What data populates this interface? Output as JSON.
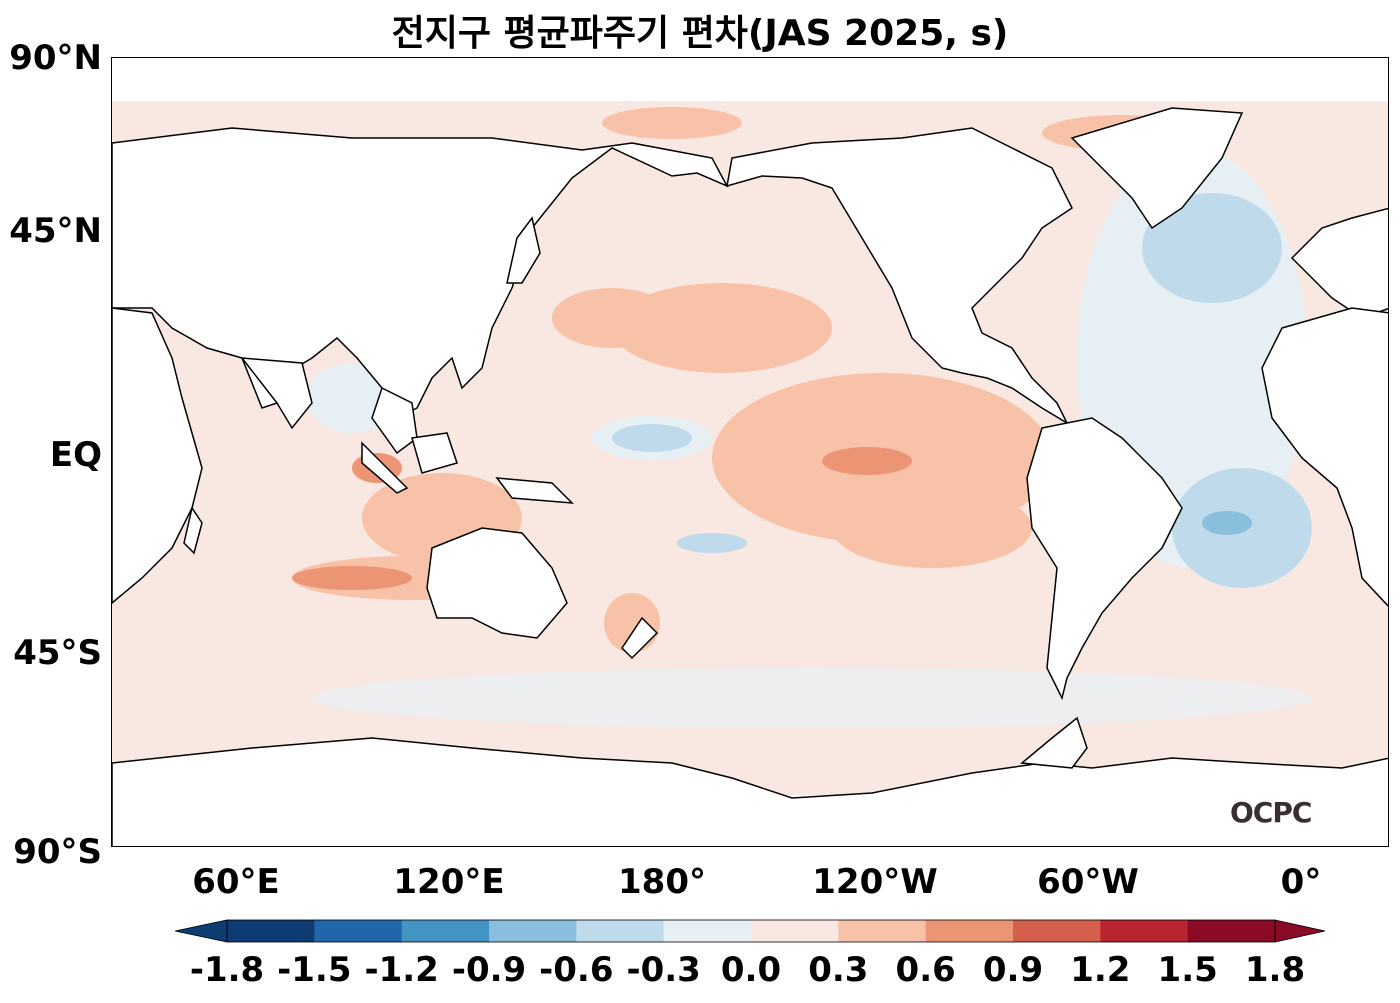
{
  "title": "전지구 평균파주기 편차(JAS 2025, s)",
  "y_axis": {
    "ticks": [
      "90°N",
      "45°N",
      "EQ",
      "45°S",
      "90°S"
    ]
  },
  "x_axis": {
    "ticks": [
      "60°E",
      "120°E",
      "180°",
      "120°W",
      "60°W",
      "0°"
    ]
  },
  "colorbar": {
    "levels": [
      "-1.8",
      "-1.5",
      "-1.2",
      "-0.9",
      "-0.6",
      "-0.3",
      "0.0",
      "0.3",
      "0.6",
      "0.9",
      "1.2",
      "1.5",
      "1.8"
    ],
    "colors": [
      "#0d3b72",
      "#2166ac",
      "#4393c3",
      "#89bedc",
      "#bfdbeb",
      "#e6eff4",
      "#f9e8e1",
      "#f7c2a7",
      "#eb9575",
      "#d55f4d",
      "#b8242f",
      "#8b0a26"
    ],
    "extend": "both"
  },
  "logo": "OCPC",
  "map": {
    "projection": "PlateCarree, central longitude ~205°E",
    "colors": {
      "land": "#ffffff",
      "coast": "#000000"
    }
  }
}
